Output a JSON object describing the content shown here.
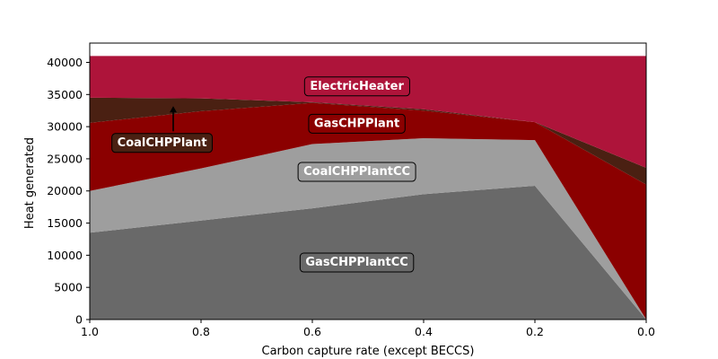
{
  "chart_data": {
    "type": "area",
    "title": "",
    "xlabel": "Carbon capture rate (except BECCS)",
    "ylabel": "Heat generated",
    "x": [
      1.0,
      0.8,
      0.6,
      0.4,
      0.2,
      0.0
    ],
    "xlim": [
      1.0,
      0.0
    ],
    "ylim": [
      0,
      43000
    ],
    "xticks": [
      "1.0",
      "0.8",
      "0.6",
      "0.4",
      "0.2",
      "0.0"
    ],
    "yticks": [
      "0",
      "5000",
      "10000",
      "15000",
      "20000",
      "25000",
      "30000",
      "35000",
      "40000"
    ],
    "grid": false,
    "series": [
      {
        "name": "GasCHPPlantCC",
        "color": "#696969",
        "values": [
          13500,
          15400,
          17300,
          19500,
          20800,
          0
        ]
      },
      {
        "name": "CoalCHPPlantCC",
        "color": "#9e9e9e",
        "values": [
          6500,
          8100,
          10000,
          8700,
          7100,
          0
        ]
      },
      {
        "name": "GasCHPPlant",
        "color": "#8b0000",
        "values": [
          10600,
          8900,
          6400,
          4300,
          2800,
          21000
        ]
      },
      {
        "name": "CoalCHPPlant",
        "color": "#4a2012",
        "values": [
          3900,
          2000,
          100,
          200,
          0,
          2600
        ]
      },
      {
        "name": "ElectricHeater",
        "color": "#ae143a",
        "values": [
          6500,
          6600,
          7200,
          8300,
          10300,
          17400
        ]
      }
    ],
    "annotations": [
      {
        "text": "ElectricHeater",
        "series": "ElectricHeater",
        "x": 0.52,
        "y": 36400,
        "box_color": "#ae143a"
      },
      {
        "text": "GasCHPPlant",
        "series": "GasCHPPlant",
        "x": 0.52,
        "y": 30600,
        "box_color": "#8b0000"
      },
      {
        "text": "CoalCHPPlantCC",
        "series": "CoalCHPPlantCC",
        "x": 0.52,
        "y": 23100,
        "box_color": "#9e9e9e"
      },
      {
        "text": "GasCHPPlantCC",
        "series": "GasCHPPlantCC",
        "x": 0.52,
        "y": 9000,
        "box_color": "#696969"
      },
      {
        "text": "CoalCHPPlant",
        "series": "CoalCHPPlant",
        "x": 0.87,
        "y": 27600,
        "box_color": "#4a2012",
        "arrow_to": [
          0.85,
          33200
        ]
      }
    ]
  }
}
